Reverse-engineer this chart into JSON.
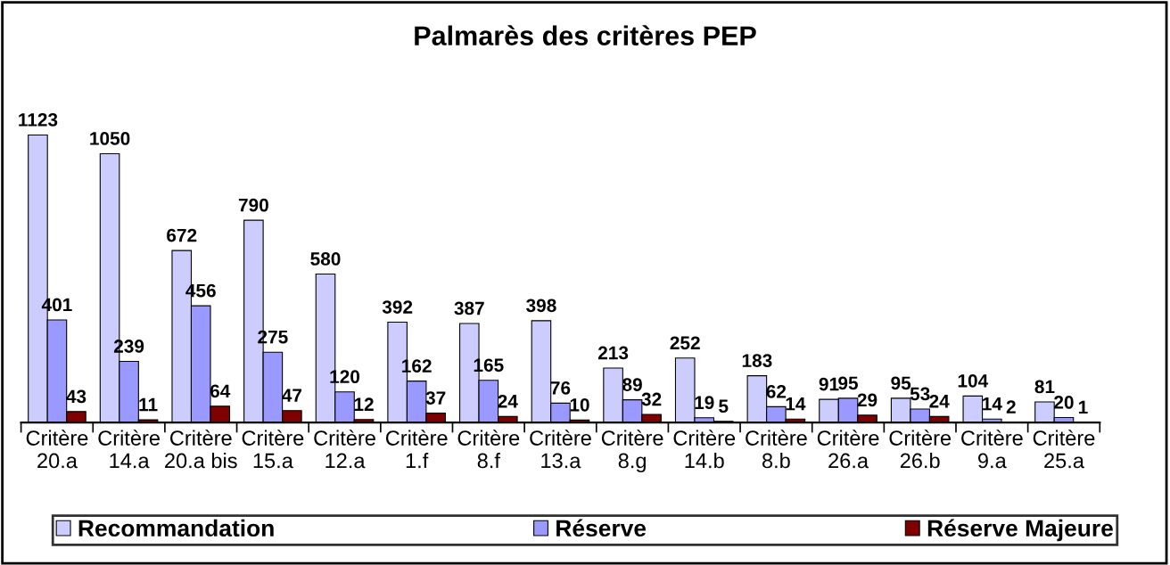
{
  "chart_data": {
    "type": "bar",
    "title": "Palmarès des critères PEP",
    "categories": [
      "Critère 20.a",
      "Critère 14.a",
      "Critère 20.a bis",
      "Critère 15.a",
      "Critère 12.a",
      "Critère 1.f",
      "Critère 8.f",
      "Critère 13.a",
      "Critère 8.g",
      "Critère 14.b",
      "Critère 8.b",
      "Critère 26.a",
      "Critère 26.b",
      "Critère 9.a",
      "Critère 25.a"
    ],
    "series": [
      {
        "name": "Recommandation",
        "color": "#ccccff",
        "values": [
          1123,
          1050,
          672,
          790,
          580,
          392,
          387,
          398,
          213,
          252,
          183,
          91,
          95,
          104,
          81
        ]
      },
      {
        "name": "Réserve",
        "color": "#9999ff",
        "values": [
          401,
          239,
          456,
          275,
          120,
          162,
          165,
          76,
          89,
          19,
          62,
          95,
          53,
          14,
          20
        ]
      },
      {
        "name": "Réserve Majeure",
        "color": "#800000",
        "values": [
          43,
          11,
          64,
          47,
          12,
          37,
          24,
          10,
          32,
          5,
          14,
          29,
          24,
          2,
          1
        ]
      }
    ],
    "data_labels": true,
    "legend": "bottom",
    "grid": false
  }
}
